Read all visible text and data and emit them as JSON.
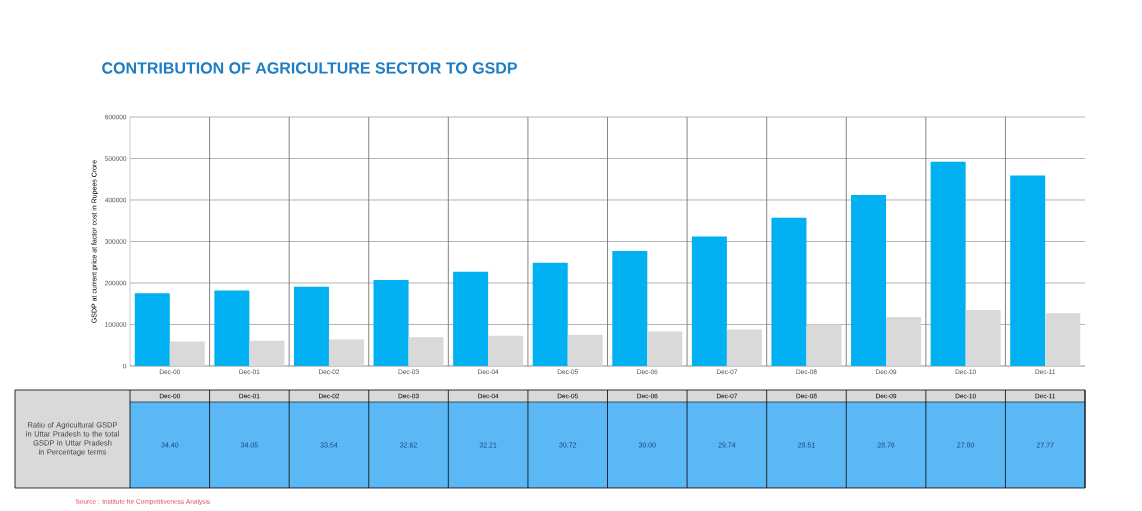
{
  "chart_data": {
    "type": "bar",
    "title": "CONTRIBUTION OF AGRICULTURE  SECTOR TO GSDP",
    "ylabel": "GSDP at current price at factor cost in Rupees Crore",
    "categories": [
      "Dec-00",
      "Dec-01",
      "Dec-02",
      "Dec-03",
      "Dec-04",
      "Dec-05",
      "Dec-06",
      "Dec-07",
      "Dec-08",
      "Dec-09",
      "Dec-10",
      "Dec-11"
    ],
    "series": [
      {
        "color": "#00b0f0",
        "values": [
          175000,
          182000,
          191000,
          207000,
          227000,
          249000,
          277000,
          312000,
          357000,
          412000,
          492000,
          459000
        ]
      },
      {
        "color": "#d9d9d9",
        "values": [
          59000,
          61000,
          64000,
          69000,
          73000,
          75000,
          83000,
          88000,
          100000,
          118000,
          135000,
          127000
        ]
      }
    ],
    "ylim": [
      0,
      600000
    ],
    "yticks": [
      0,
      100000,
      200000,
      300000,
      400000,
      500000,
      600000
    ],
    "grid": true,
    "annotations": [
      "Ratio of Agricultural GSDP in Uttar Pradesh to the total GSDP in Uttar Pradesh in Percentage terms",
      "Source : Institute for Competitiveness Analysis",
      "34.40",
      "34.05",
      "33.54",
      "32.62",
      "32.21",
      "30.72",
      "30.00",
      "29.74",
      "28.51",
      "28.76",
      "27.80",
      "27.77"
    ]
  }
}
